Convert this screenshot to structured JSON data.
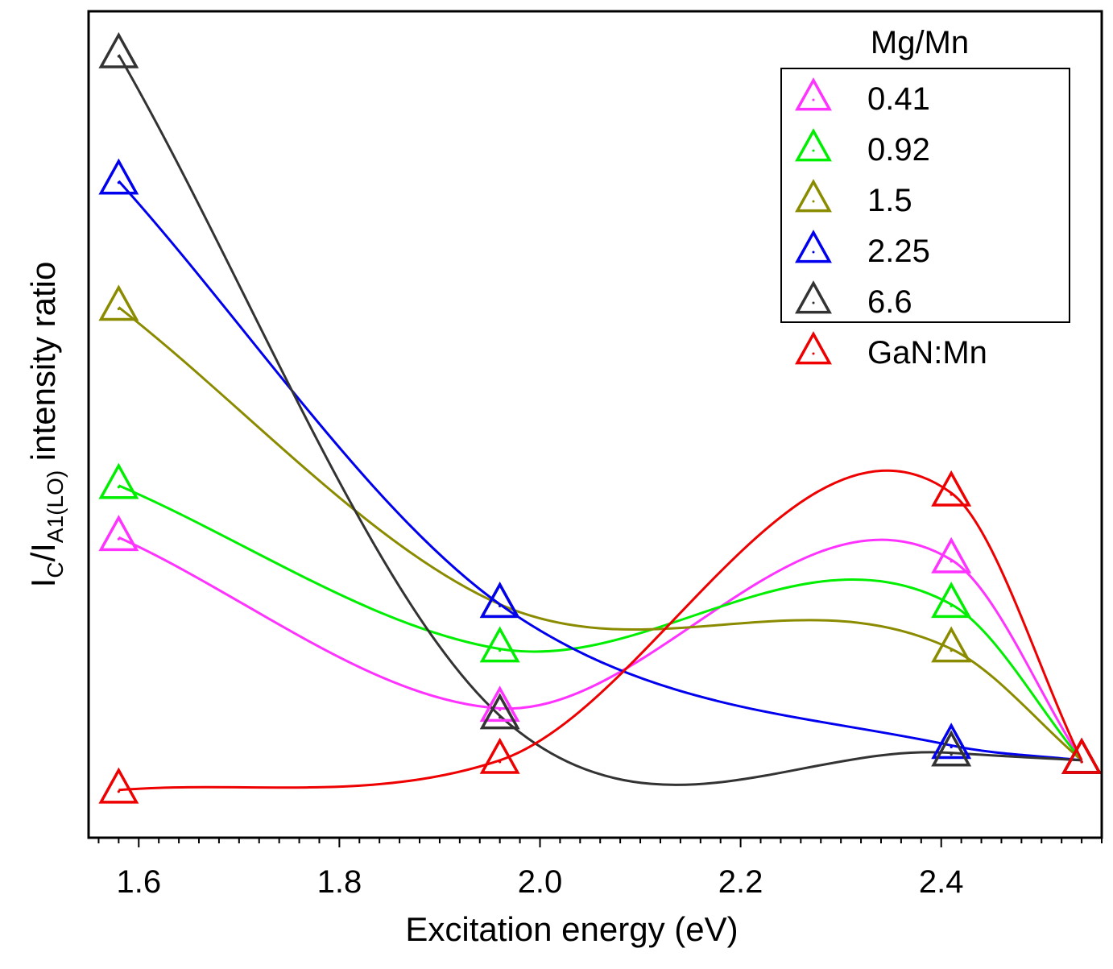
{
  "chart_data": {
    "type": "line",
    "xlabel": "Excitation energy (eV)",
    "ylabel": {
      "main": "I",
      "sub1": "C",
      "mid": "/I",
      "sub2": "A1(LO)",
      "rest": " intensity ratio"
    },
    "xlim": [
      1.55,
      2.56
    ],
    "ylim": [
      0,
      1
    ],
    "x_ticks": [
      "1.6",
      "1.8",
      "2.0",
      "2.2",
      "2.4"
    ],
    "y_ticks_labeled": false,
    "legend_title": "Mg/Mn",
    "legend_position": "top-right",
    "x": [
      1.58,
      1.96,
      2.41,
      2.54
    ],
    "series": [
      {
        "name": "0.41",
        "color": "#ff33ff",
        "marker": "open-triangle",
        "values": [
          0.35,
          0.12,
          0.32,
          0.05
        ]
      },
      {
        "name": "0.92",
        "color": "#00ee00",
        "marker": "open-triangle",
        "values": [
          0.42,
          0.2,
          0.26,
          0.05
        ]
      },
      {
        "name": "1.5",
        "color": "#8b8b00",
        "marker": "open-triangle",
        "values": [
          0.66,
          0.26,
          0.2,
          0.05
        ]
      },
      {
        "name": "2.25",
        "color": "#0000ee",
        "marker": "open-triangle",
        "values": [
          0.83,
          0.26,
          0.07,
          0.05
        ]
      },
      {
        "name": "6.6",
        "color": "#333333",
        "marker": "open-triangle",
        "values": [
          1.0,
          0.11,
          0.06,
          0.05
        ]
      },
      {
        "name": "GaN:Mn",
        "color": "#ee0000",
        "marker": "open-triangle",
        "values": [
          0.01,
          0.05,
          0.41,
          0.05
        ]
      }
    ],
    "boxed_legend_series_count": 5
  }
}
